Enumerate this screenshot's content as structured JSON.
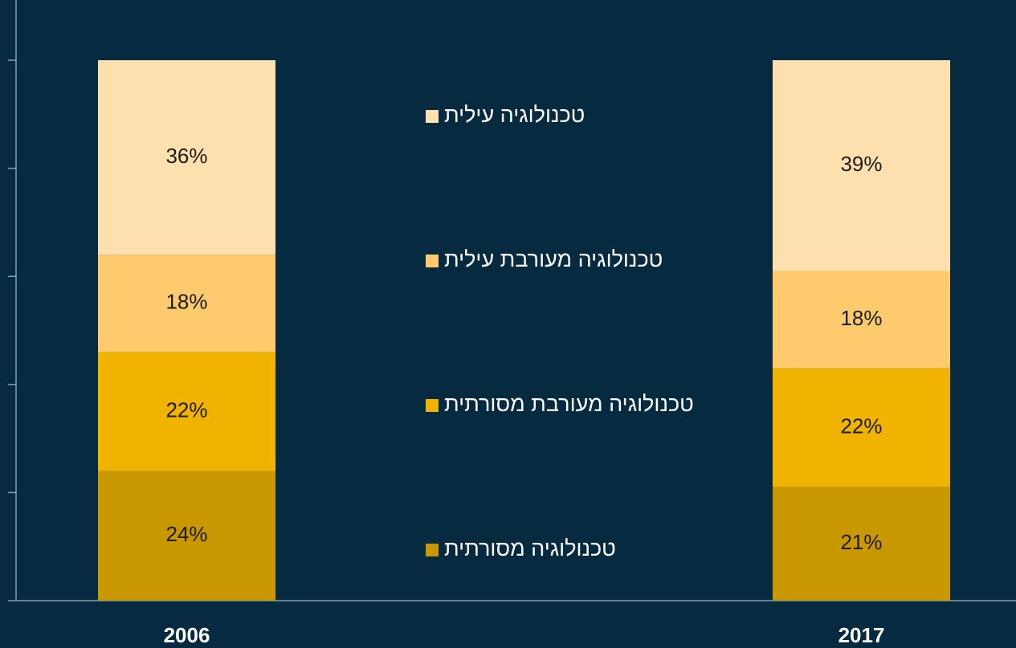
{
  "chart_data": {
    "type": "stacked_bar",
    "categories": [
      "2006",
      "2017"
    ],
    "series": [
      {
        "name": "טכנולוגיה מסורתית",
        "color": "#c99700",
        "values": [
          24,
          21
        ],
        "value_labels": [
          "24%",
          "21%"
        ]
      },
      {
        "name": "טכנולוגיה מעורבת מסורתית",
        "color": "#f0b400",
        "values": [
          22,
          22
        ],
        "value_labels": [
          "22%",
          "22%"
        ]
      },
      {
        "name": "טכנולוגיה מעורבת עילית",
        "color": "#fdcb6e",
        "values": [
          18,
          18
        ],
        "value_labels": [
          "18%",
          "18%"
        ]
      },
      {
        "name": "טכנולוגיה עילית",
        "color": "#fde0ad",
        "values": [
          36,
          39
        ],
        "value_labels": [
          "36%",
          "39%"
        ]
      }
    ],
    "ylim": [
      0,
      100
    ],
    "yticks": [
      0,
      20,
      40,
      60,
      80,
      100
    ]
  }
}
